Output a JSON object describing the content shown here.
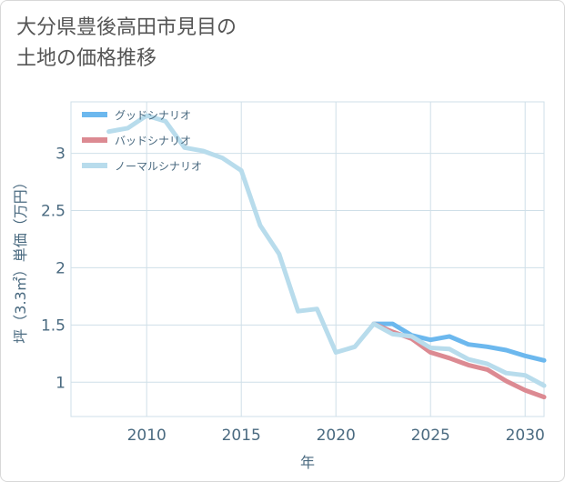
{
  "title_line1": "大分県豊後高田市見目の",
  "title_line2": "土地の価格推移",
  "chart_data": {
    "type": "line",
    "xlabel": "年",
    "ylabel": "坪（3.3㎡）単価（万円）",
    "xlim": [
      2006,
      2031
    ],
    "ylim": [
      0.7,
      3.45
    ],
    "x_ticks": [
      "2010",
      "2015",
      "2020",
      "2025",
      "2030"
    ],
    "y_ticks": [
      "1",
      "1.5",
      "2",
      "2.5",
      "3"
    ],
    "grid": true,
    "legend_position": "top-left",
    "series": [
      {
        "name": "グッドシナリオ",
        "color": "#6cb8ee",
        "x": [
          2022,
          2023,
          2024,
          2025,
          2026,
          2027,
          2028,
          2029,
          2030,
          2031
        ],
        "y": [
          1.51,
          1.51,
          1.41,
          1.37,
          1.4,
          1.33,
          1.31,
          1.28,
          1.23,
          1.19
        ]
      },
      {
        "name": "バッドシナリオ",
        "color": "#dc8a92",
        "x": [
          2022,
          2023,
          2024,
          2025,
          2026,
          2027,
          2028,
          2029,
          2030,
          2031
        ],
        "y": [
          1.51,
          1.44,
          1.38,
          1.26,
          1.21,
          1.15,
          1.11,
          1.01,
          0.93,
          0.87
        ]
      },
      {
        "name": "ノーマルシナリオ",
        "color": "#b8dcec",
        "x": [
          2008,
          2009,
          2010,
          2011,
          2012,
          2013,
          2014,
          2015,
          2016,
          2017,
          2018,
          2019,
          2020,
          2021,
          2022,
          2023,
          2024,
          2025,
          2026,
          2027,
          2028,
          2029,
          2030,
          2031
        ],
        "y": [
          3.19,
          3.22,
          3.33,
          3.28,
          3.05,
          3.02,
          2.96,
          2.85,
          2.37,
          2.12,
          1.62,
          1.64,
          1.26,
          1.31,
          1.51,
          1.42,
          1.4,
          1.3,
          1.29,
          1.2,
          1.16,
          1.08,
          1.06,
          0.97
        ]
      }
    ]
  }
}
